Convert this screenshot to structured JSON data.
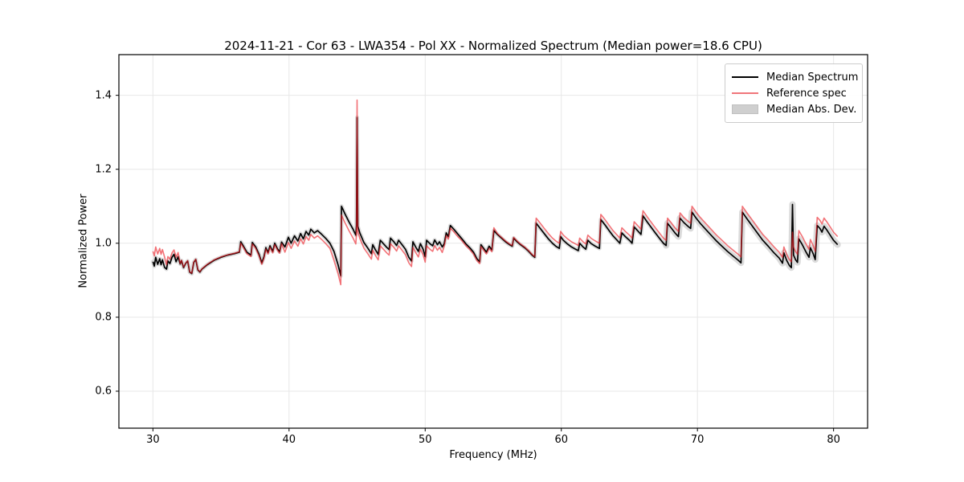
{
  "figure": {
    "background": "#ffffff"
  },
  "chart_data": {
    "type": "line",
    "title": "2024-11-21 - Cor 63 - LWA354 - Pol XX - Normalized Spectrum (Median power=18.6 CPU)",
    "xlabel": "Frequency (MHz)",
    "ylabel": "Normalized Power",
    "xlim": [
      27.5,
      82.5
    ],
    "ylim": [
      0.5,
      1.51
    ],
    "xticks": [
      "30",
      "40",
      "50",
      "60",
      "70",
      "80"
    ],
    "xtick_values": [
      30,
      40,
      50,
      60,
      70,
      80
    ],
    "yticks": [
      "0.6",
      "0.8",
      "1.0",
      "1.2",
      "1.4"
    ],
    "ytick_values": [
      0.6,
      0.8,
      1.0,
      1.2,
      1.4
    ],
    "grid": true,
    "grid_color": "#e7e7e7",
    "axis_color": "#000000",
    "legend_position": "upper right",
    "series": [
      {
        "name": "Median Spectrum",
        "color": "#000000",
        "width": 1.7,
        "points": [
          [
            30.0,
            0.95
          ],
          [
            30.1,
            0.938
          ],
          [
            30.2,
            0.962
          ],
          [
            30.35,
            0.943
          ],
          [
            30.5,
            0.958
          ],
          [
            30.6,
            0.942
          ],
          [
            30.7,
            0.955
          ],
          [
            30.85,
            0.935
          ],
          [
            31.0,
            0.93
          ],
          [
            31.1,
            0.952
          ],
          [
            31.25,
            0.945
          ],
          [
            31.4,
            0.962
          ],
          [
            31.55,
            0.97
          ],
          [
            31.7,
            0.95
          ],
          [
            31.85,
            0.963
          ],
          [
            32.0,
            0.944
          ],
          [
            32.1,
            0.953
          ],
          [
            32.25,
            0.934
          ],
          [
            32.4,
            0.945
          ],
          [
            32.55,
            0.952
          ],
          [
            32.7,
            0.922
          ],
          [
            32.85,
            0.918
          ],
          [
            33.0,
            0.948
          ],
          [
            33.15,
            0.956
          ],
          [
            33.3,
            0.928
          ],
          [
            33.45,
            0.922
          ],
          [
            33.6,
            0.93
          ],
          [
            34.0,
            0.942
          ],
          [
            34.5,
            0.954
          ],
          [
            35.0,
            0.962
          ],
          [
            35.5,
            0.968
          ],
          [
            36.0,
            0.972
          ],
          [
            36.35,
            0.976
          ],
          [
            36.45,
            1.004
          ],
          [
            36.65,
            0.992
          ],
          [
            36.9,
            0.976
          ],
          [
            37.2,
            0.968
          ],
          [
            37.3,
            1.002
          ],
          [
            37.55,
            0.99
          ],
          [
            37.8,
            0.97
          ],
          [
            38.0,
            0.947
          ],
          [
            38.15,
            0.963
          ],
          [
            38.3,
            0.988
          ],
          [
            38.45,
            0.975
          ],
          [
            38.6,
            0.993
          ],
          [
            38.8,
            0.978
          ],
          [
            38.95,
            1.0
          ],
          [
            39.15,
            0.985
          ],
          [
            39.3,
            0.977
          ],
          [
            39.45,
            1.003
          ],
          [
            39.7,
            0.99
          ],
          [
            39.95,
            1.016
          ],
          [
            40.15,
            1.0
          ],
          [
            40.4,
            1.02
          ],
          [
            40.65,
            1.006
          ],
          [
            40.85,
            1.026
          ],
          [
            41.05,
            1.012
          ],
          [
            41.25,
            1.032
          ],
          [
            41.45,
            1.022
          ],
          [
            41.6,
            1.038
          ],
          [
            41.85,
            1.028
          ],
          [
            42.1,
            1.034
          ],
          [
            42.4,
            1.024
          ],
          [
            42.7,
            1.013
          ],
          [
            43.0,
            1.0
          ],
          [
            43.3,
            0.978
          ],
          [
            43.6,
            0.942
          ],
          [
            43.8,
            0.912
          ],
          [
            43.85,
            1.1
          ],
          [
            44.1,
            1.08
          ],
          [
            44.4,
            1.058
          ],
          [
            44.7,
            1.038
          ],
          [
            44.9,
            1.022
          ],
          [
            44.95,
            1.048
          ],
          [
            45.0,
            1.34
          ],
          [
            45.05,
            1.046
          ],
          [
            45.2,
            1.028
          ],
          [
            45.5,
            1.002
          ],
          [
            45.8,
            0.986
          ],
          [
            46.05,
            0.972
          ],
          [
            46.15,
            0.996
          ],
          [
            46.35,
            0.982
          ],
          [
            46.55,
            0.97
          ],
          [
            46.7,
            1.008
          ],
          [
            46.95,
            0.998
          ],
          [
            47.2,
            0.988
          ],
          [
            47.35,
            0.983
          ],
          [
            47.45,
            1.014
          ],
          [
            47.7,
            1.004
          ],
          [
            47.9,
            0.994
          ],
          [
            48.05,
            1.008
          ],
          [
            48.3,
            0.996
          ],
          [
            48.55,
            0.984
          ],
          [
            48.8,
            0.962
          ],
          [
            49.0,
            0.952
          ],
          [
            49.1,
            1.004
          ],
          [
            49.3,
            0.99
          ],
          [
            49.5,
            0.978
          ],
          [
            49.65,
            0.999
          ],
          [
            49.85,
            0.984
          ],
          [
            50.0,
            0.964
          ],
          [
            50.1,
            1.008
          ],
          [
            50.35,
            0.999
          ],
          [
            50.55,
            0.993
          ],
          [
            50.7,
            1.009
          ],
          [
            50.9,
            0.996
          ],
          [
            51.05,
            1.004
          ],
          [
            51.25,
            0.99
          ],
          [
            51.4,
            0.999
          ],
          [
            51.55,
            1.028
          ],
          [
            51.7,
            1.018
          ],
          [
            51.85,
            1.048
          ],
          [
            52.1,
            1.038
          ],
          [
            52.4,
            1.025
          ],
          [
            52.7,
            1.012
          ],
          [
            53.0,
            0.998
          ],
          [
            53.3,
            0.987
          ],
          [
            53.55,
            0.976
          ],
          [
            53.8,
            0.958
          ],
          [
            54.0,
            0.95
          ],
          [
            54.1,
            0.996
          ],
          [
            54.3,
            0.986
          ],
          [
            54.5,
            0.976
          ],
          [
            54.7,
            0.992
          ],
          [
            54.9,
            0.982
          ],
          [
            55.05,
            1.034
          ],
          [
            55.3,
            1.024
          ],
          [
            55.6,
            1.014
          ],
          [
            55.9,
            1.004
          ],
          [
            56.2,
            0.996
          ],
          [
            56.4,
            0.992
          ],
          [
            56.5,
            1.014
          ],
          [
            56.75,
            1.004
          ],
          [
            57.0,
            0.996
          ],
          [
            57.3,
            0.988
          ],
          [
            57.6,
            0.978
          ],
          [
            57.85,
            0.968
          ],
          [
            58.05,
            0.962
          ],
          [
            58.15,
            1.054
          ],
          [
            58.45,
            1.04
          ],
          [
            58.75,
            1.026
          ],
          [
            59.05,
            1.012
          ],
          [
            59.35,
            1.0
          ],
          [
            59.6,
            0.992
          ],
          [
            59.85,
            0.986
          ],
          [
            59.95,
            1.018
          ],
          [
            60.15,
            1.008
          ],
          [
            60.45,
            0.998
          ],
          [
            60.75,
            0.99
          ],
          [
            61.05,
            0.984
          ],
          [
            61.25,
            0.98
          ],
          [
            61.35,
            1.0
          ],
          [
            61.6,
            0.99
          ],
          [
            61.8,
            0.984
          ],
          [
            61.95,
            1.008
          ],
          [
            62.2,
            0.999
          ],
          [
            62.5,
            0.992
          ],
          [
            62.8,
            0.986
          ],
          [
            62.9,
            1.064
          ],
          [
            63.2,
            1.05
          ],
          [
            63.5,
            1.035
          ],
          [
            63.8,
            1.02
          ],
          [
            64.1,
            1.008
          ],
          [
            64.3,
            1.0
          ],
          [
            64.45,
            1.028
          ],
          [
            64.7,
            1.018
          ],
          [
            65.0,
            1.008
          ],
          [
            65.2,
            1.0
          ],
          [
            65.35,
            1.044
          ],
          [
            65.6,
            1.034
          ],
          [
            65.85,
            1.024
          ],
          [
            66.0,
            1.074
          ],
          [
            66.3,
            1.058
          ],
          [
            66.6,
            1.043
          ],
          [
            66.9,
            1.028
          ],
          [
            67.2,
            1.014
          ],
          [
            67.5,
            1.0
          ],
          [
            67.7,
            0.994
          ],
          [
            67.8,
            1.054
          ],
          [
            68.1,
            1.04
          ],
          [
            68.35,
            1.028
          ],
          [
            68.6,
            1.018
          ],
          [
            68.72,
            1.068
          ],
          [
            69.0,
            1.056
          ],
          [
            69.3,
            1.046
          ],
          [
            69.5,
            1.04
          ],
          [
            69.6,
            1.084
          ],
          [
            69.9,
            1.068
          ],
          [
            70.2,
            1.054
          ],
          [
            70.6,
            1.038
          ],
          [
            71.0,
            1.022
          ],
          [
            71.4,
            1.006
          ],
          [
            71.8,
            0.992
          ],
          [
            72.2,
            0.978
          ],
          [
            72.6,
            0.966
          ],
          [
            73.0,
            0.954
          ],
          [
            73.2,
            0.947
          ],
          [
            73.3,
            1.084
          ],
          [
            73.6,
            1.068
          ],
          [
            74.0,
            1.048
          ],
          [
            74.4,
            1.028
          ],
          [
            74.8,
            1.008
          ],
          [
            75.2,
            0.992
          ],
          [
            75.6,
            0.975
          ],
          [
            76.0,
            0.96
          ],
          [
            76.25,
            0.946
          ],
          [
            76.35,
            0.974
          ],
          [
            76.55,
            0.954
          ],
          [
            76.75,
            0.94
          ],
          [
            76.9,
            0.934
          ],
          [
            76.98,
            1.105
          ],
          [
            77.06,
            0.968
          ],
          [
            77.2,
            0.956
          ],
          [
            77.35,
            0.948
          ],
          [
            77.45,
            1.012
          ],
          [
            77.7,
            0.996
          ],
          [
            77.95,
            0.978
          ],
          [
            78.2,
            0.962
          ],
          [
            78.3,
            0.988
          ],
          [
            78.5,
            0.972
          ],
          [
            78.65,
            0.956
          ],
          [
            78.8,
            1.048
          ],
          [
            79.0,
            1.04
          ],
          [
            79.15,
            1.03
          ],
          [
            79.3,
            1.046
          ],
          [
            79.5,
            1.036
          ],
          [
            79.75,
            1.022
          ],
          [
            80.0,
            1.008
          ],
          [
            80.3,
            0.996
          ]
        ]
      },
      {
        "name": "Reference spec",
        "color": "rgba(234,28,36,0.62)",
        "width": 1.6,
        "derived_from": 0,
        "offset_regions": [
          [
            30.0,
            30.9,
            0.028
          ],
          [
            30.9,
            31.9,
            0.012
          ],
          [
            31.9,
            36.4,
            0.001
          ],
          [
            36.4,
            39.5,
            -0.004
          ],
          [
            39.5,
            43.3,
            -0.014
          ],
          [
            43.3,
            44.98,
            -0.024
          ],
          [
            44.98,
            51.3,
            -0.015
          ],
          [
            51.3,
            52.6,
            -0.007
          ],
          [
            52.6,
            54.95,
            -0.005
          ],
          [
            54.95,
            55.3,
            0.008
          ],
          [
            55.3,
            58.1,
            0.002
          ],
          [
            58.1,
            69.55,
            0.014
          ],
          [
            69.55,
            76.95,
            0.016
          ],
          [
            76.95,
            80.5,
            0.022
          ]
        ],
        "overrides": [
          [
            45.0,
            1.387
          ],
          [
            76.98,
            1.03
          ]
        ]
      }
    ],
    "band": {
      "name": "Median Abs. Dev.",
      "color": "#bdbdbd",
      "opacity": 0.55,
      "around_series": 0,
      "width_regions": [
        [
          27.5,
          67.75,
          5
        ],
        [
          67.7,
          80.5,
          8
        ]
      ]
    }
  }
}
